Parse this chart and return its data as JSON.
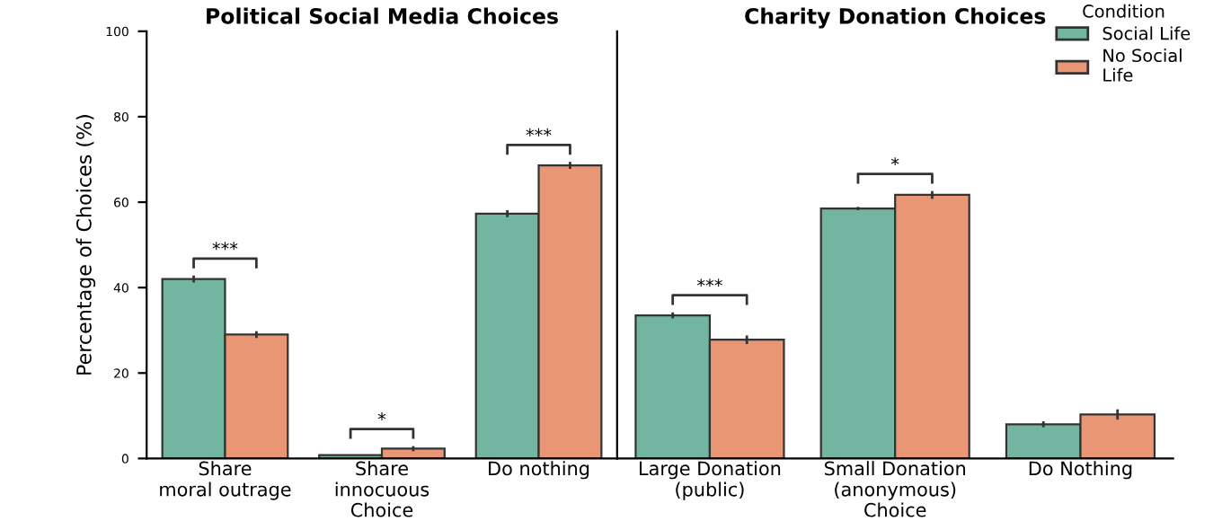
{
  "chart_data": [
    {
      "type": "bar",
      "title": "Political Social Media Choices",
      "xlabel": "Choice",
      "ylabel": "Percentage of Choices (%)",
      "categories": [
        "Share\nmoral outrage",
        "Share\ninnocuous",
        "Do nothing"
      ],
      "series": [
        {
          "color": "#72b6a1",
          "values": [
            42,
            0.8,
            57.3
          ],
          "errors": [
            0.8,
            null,
            0.8
          ]
        },
        {
          "color": "#e99675",
          "values": [
            29,
            2.3,
            68.6
          ],
          "errors": [
            0.8,
            0.6,
            0.8
          ]
        }
      ],
      "ylim": [
        0,
        100
      ],
      "yticks": [
        0,
        20,
        40,
        60,
        80,
        100
      ],
      "grid": false,
      "legend": false,
      "annotations": [
        "***",
        "*",
        "***"
      ]
    },
    {
      "type": "bar",
      "title": "Charity Donation Choices",
      "xlabel": "Choice",
      "categories": [
        "Large Donation\n(public)",
        "Small Donation\n(anonymous)",
        "Do Nothing"
      ],
      "series": [
        {
          "name": "Social Life",
          "color": "#72b6a1",
          "values": [
            33.5,
            58.5,
            8.0
          ],
          "errors": [
            0.7,
            0.4,
            0.7
          ]
        },
        {
          "name": "No Social\nLife",
          "color": "#e99675",
          "values": [
            27.8,
            61.7,
            10.3
          ],
          "errors": [
            1.0,
            0.9,
            1.2
          ]
        }
      ],
      "ylim": [
        0,
        100
      ],
      "yticks": [
        0,
        20,
        40,
        60,
        80,
        100
      ],
      "tick_labels": "x",
      "grid": false,
      "legend": "top right",
      "legend_title": "Condition",
      "annotations": [
        "***",
        "*"
      ]
    }
  ]
}
